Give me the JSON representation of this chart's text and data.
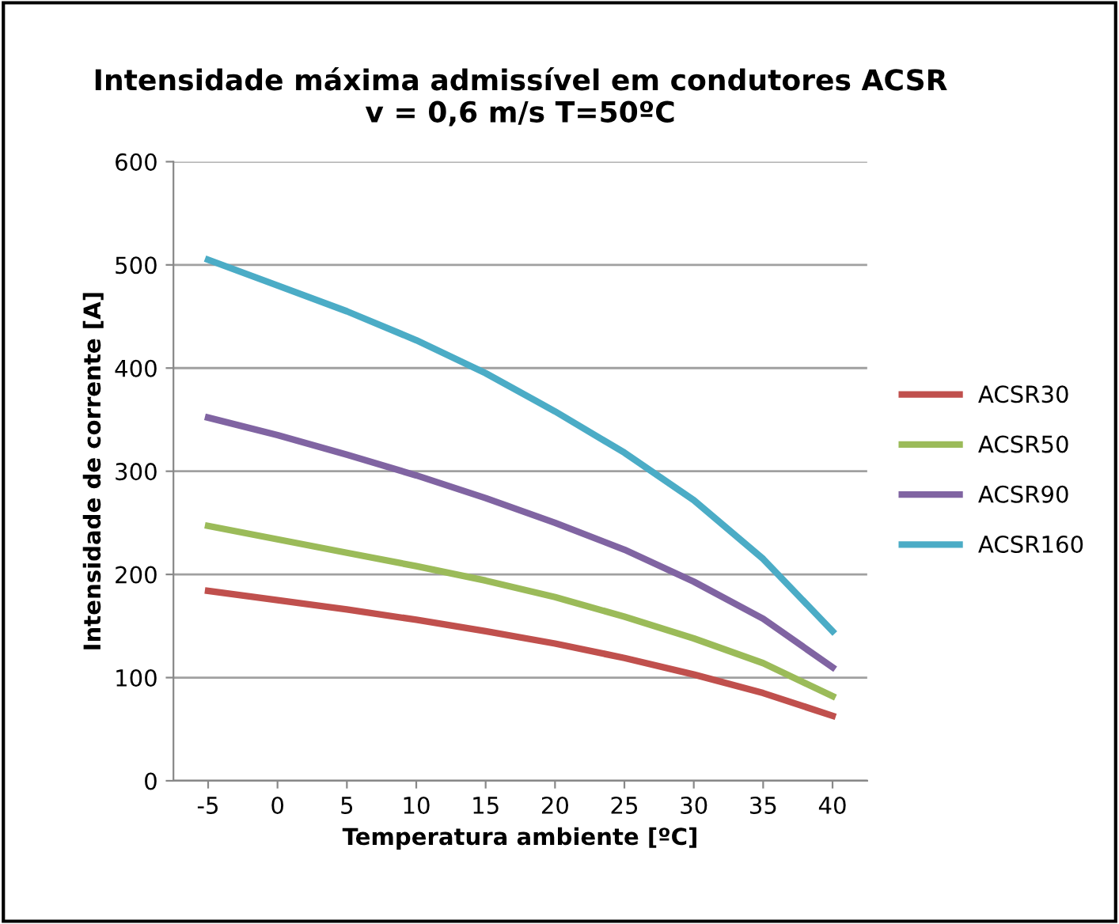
{
  "chart_data": {
    "type": "line",
    "title": "Intensidade máxima admissível em condutores ACSR\nv = 0,6 m/s T=50ºC",
    "xlabel": "Temperatura ambiente [ºC]",
    "ylabel": "Intensidade de corrente [A]",
    "categories": [
      "-5",
      "0",
      "5",
      "10",
      "15",
      "20",
      "25",
      "30",
      "35",
      "40"
    ],
    "series": [
      {
        "name": "ACSR30",
        "color": "#c0504d",
        "values": [
          184,
          175,
          166,
          156,
          145,
          133,
          119,
          103,
          85,
          63
        ]
      },
      {
        "name": "ACSR50",
        "color": "#9bbb59",
        "values": [
          247,
          234,
          221,
          208,
          194,
          178,
          159,
          138,
          114,
          82
        ]
      },
      {
        "name": "ACSR90",
        "color": "#8064a2",
        "values": [
          352,
          335,
          316,
          296,
          274,
          250,
          224,
          193,
          157,
          110
        ]
      },
      {
        "name": "ACSR160",
        "color": "#4bacc6",
        "values": [
          505,
          480,
          455,
          427,
          395,
          358,
          318,
          272,
          215,
          145
        ]
      }
    ],
    "ylim": [
      0,
      600
    ],
    "yticks": [
      0,
      100,
      200,
      300,
      400,
      500,
      600
    ],
    "grid": "y",
    "legend": "right",
    "marker": "none",
    "line_style": "solid"
  }
}
